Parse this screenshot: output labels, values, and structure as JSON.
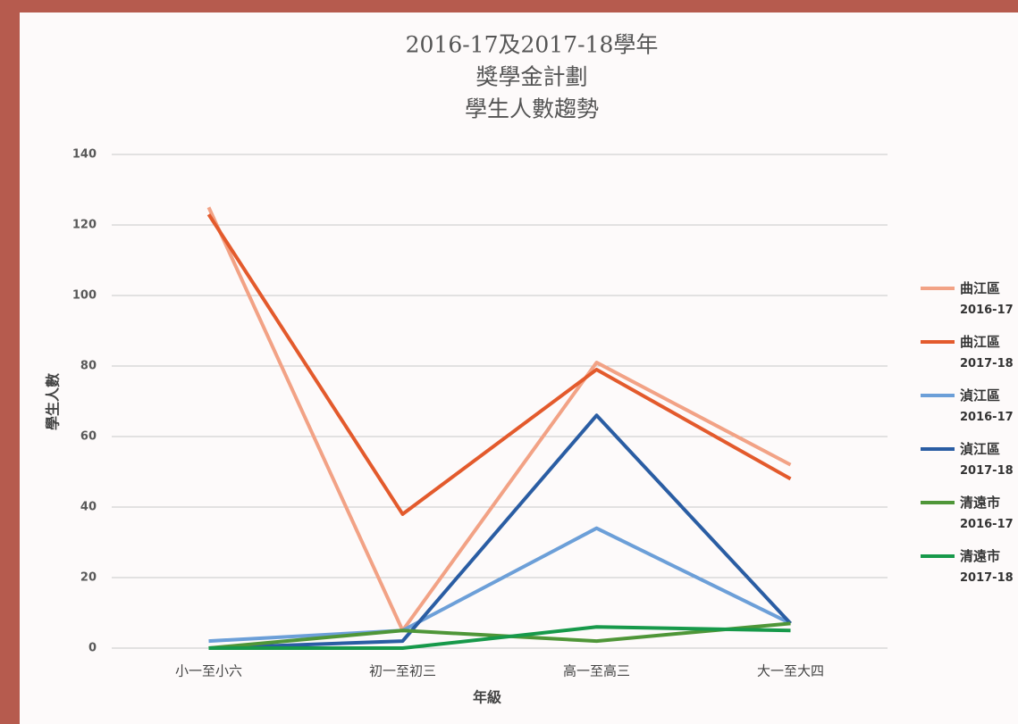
{
  "chart_data": {
    "type": "line",
    "title": [
      "2016-17及2017-18學年",
      "獎學金計劃",
      "學生人數趨勢"
    ],
    "x_label": "年級",
    "y_label": "學生人數",
    "categories": [
      "小一至小六",
      "初一至初三",
      "高一至高三",
      "大一至大四"
    ],
    "series": [
      {
        "name": "曲江區 2016-17",
        "color": "#f2a285",
        "values": [
          125,
          5,
          81,
          52
        ]
      },
      {
        "name": "曲江區 2017-18",
        "color": "#e35a2c",
        "values": [
          123,
          38,
          79,
          48
        ]
      },
      {
        "name": "湞江區 2016-17",
        "color": "#6c9fd8",
        "values": [
          2,
          5,
          34,
          7
        ]
      },
      {
        "name": "湞江區 2017-18",
        "color": "#2a5da3",
        "values": [
          0,
          2,
          66,
          7
        ]
      },
      {
        "name": "清遠市 2016-17",
        "color": "#4f9638",
        "values": [
          0,
          5,
          2,
          7
        ]
      },
      {
        "name": "清遠市 2017-18",
        "color": "#17994a",
        "values": [
          0,
          0,
          6,
          5
        ]
      }
    ],
    "ylim": [
      0,
      140
    ],
    "yticks": [
      0,
      20,
      40,
      60,
      80,
      100,
      120,
      140
    ],
    "grid": true,
    "legend": "right"
  }
}
